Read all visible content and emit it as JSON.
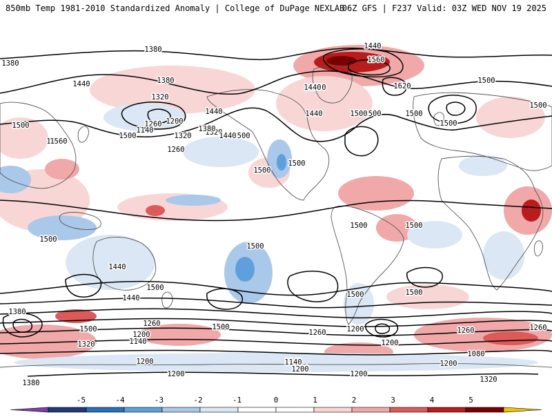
{
  "header": {
    "title_left": "850mb Temp 1981-2010 Standardized Anomaly | College of DuPage NEXLAB",
    "title_right": "06Z GFS | F237 Valid: 03Z WED NOV 19 2025"
  },
  "colors": {
    "pos1": "#f9d6d6",
    "pos2": "#f0a8a8",
    "pos3": "#dc5a5a",
    "pos4": "#b81c1c",
    "pos5": "#7a0000",
    "neg1": "#dbe7f5",
    "neg2": "#a9c8ea",
    "neg3": "#5fa0dc",
    "neg4": "#2a6fb9",
    "land_line": "#555555",
    "contour": "#000000"
  },
  "contour_labels": [
    "1380",
    "1440",
    "1560",
    "1620",
    "1500",
    "1320",
    "1260",
    "1200",
    "1380",
    "1440",
    "1500",
    "1560",
    "1500",
    "1440",
    "1380",
    "1320",
    "1500",
    "1440",
    "1500",
    "1500",
    "1500",
    "1500",
    "1500",
    "1500",
    "1380",
    "1320",
    "1440",
    "1560",
    "1500",
    "1440",
    "1380",
    "1320",
    "1260",
    "1140",
    "1380",
    "1500",
    "1440",
    "1260",
    "1200",
    "1140",
    "1320",
    "1200",
    "1380",
    "1320",
    "1500",
    "1200",
    "1140",
    "1200",
    "1260",
    "1200",
    "1260",
    "1080",
    "1200",
    "1320",
    "1500",
    "1500",
    "1440",
    "1500",
    "1260",
    "1200",
    "1200",
    "1140",
    "1500",
    "1500",
    "1500",
    "1500",
    "1200"
  ],
  "colorbar": {
    "ticks": [
      "-5",
      "-4",
      "-3",
      "-2",
      "-1",
      "0",
      "1",
      "2",
      "3",
      "4",
      "5"
    ],
    "colors": [
      "#7b3fa8",
      "#1f3a7a",
      "#2a6fb9",
      "#5fa0dc",
      "#a9c8ea",
      "#dbe7f5",
      "#ffffff",
      "#ffffff",
      "#f9d6d6",
      "#f0a8a8",
      "#dc5a5a",
      "#b81c1c",
      "#7a0000",
      "#f5c400"
    ]
  }
}
